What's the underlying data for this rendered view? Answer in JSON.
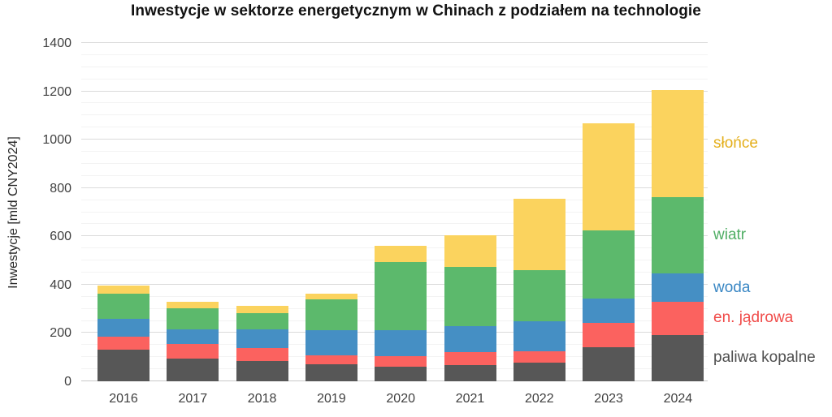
{
  "title": "Inwestycje w sektorze energetycznym w Chinach z podziałem na technologie",
  "y_axis": {
    "label": "Inwestycje [mld CNY2024]",
    "ticks": [
      0,
      200,
      400,
      600,
      800,
      1000,
      1200,
      1400
    ]
  },
  "chart_data": {
    "type": "bar",
    "stacked": true,
    "title": "Inwestycje w sektorze energetycznym w Chinach z podziałem na technologie",
    "xlabel": "",
    "ylabel": "Inwestycje [mld CNY2024]",
    "ylim": [
      0,
      1400
    ],
    "grid": {
      "minor_step": 50,
      "major_step": 200
    },
    "legend_position": "right",
    "categories": [
      "2016",
      "2017",
      "2018",
      "2019",
      "2020",
      "2021",
      "2022",
      "2023",
      "2024"
    ],
    "series": [
      {
        "name": "paliwa kopalne",
        "color": "#575757",
        "label_color": "#4f4f4f",
        "values": [
          131,
          93,
          84,
          70,
          62,
          67,
          76,
          141,
          193
        ]
      },
      {
        "name": "en. jądrowa",
        "color": "#fb625f",
        "label_color": "#f04b49",
        "values": [
          55,
          61,
          53,
          39,
          42,
          53,
          47,
          101,
          135
        ]
      },
      {
        "name": "woda",
        "color": "#458fc4",
        "label_color": "#3a87c4",
        "values": [
          71,
          62,
          79,
          101,
          108,
          110,
          124,
          101,
          119
        ]
      },
      {
        "name": "wiatr",
        "color": "#5cb96c",
        "label_color": "#4fae64",
        "values": [
          107,
          85,
          67,
          130,
          283,
          244,
          214,
          283,
          314
        ]
      },
      {
        "name": "słońce",
        "color": "#fbd35e",
        "label_color": "#e4af1b",
        "values": [
          32,
          29,
          28,
          22,
          67,
          131,
          294,
          442,
          445
        ]
      }
    ],
    "totals": [
      396,
      330,
      311,
      362,
      562,
      605,
      755,
      1068,
      1206
    ]
  }
}
